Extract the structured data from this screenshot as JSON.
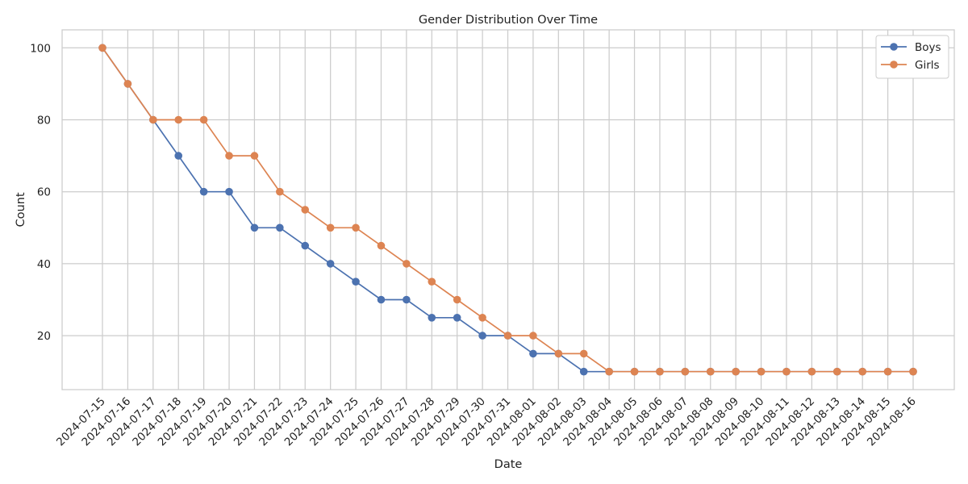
{
  "chart_data": {
    "type": "line",
    "title": "Gender Distribution Over Time",
    "xlabel": "Date",
    "ylabel": "Count",
    "x": [
      "2024-07-15",
      "2024-07-16",
      "2024-07-17",
      "2024-07-18",
      "2024-07-19",
      "2024-07-20",
      "2024-07-21",
      "2024-07-22",
      "2024-07-23",
      "2024-07-24",
      "2024-07-25",
      "2024-07-26",
      "2024-07-27",
      "2024-07-28",
      "2024-07-29",
      "2024-07-30",
      "2024-07-31",
      "2024-08-01",
      "2024-08-02",
      "2024-08-03",
      "2024-08-04",
      "2024-08-05",
      "2024-08-06",
      "2024-08-07",
      "2024-08-08",
      "2024-08-09",
      "2024-08-10",
      "2024-08-11",
      "2024-08-12",
      "2024-08-13",
      "2024-08-14",
      "2024-08-15",
      "2024-08-16"
    ],
    "yticks": [
      20,
      40,
      60,
      80,
      100
    ],
    "ylim": [
      5,
      105
    ],
    "grid": true,
    "legend_position": "top-right",
    "series": [
      {
        "name": "Boys",
        "color": "#4c72b0",
        "values": [
          100,
          90,
          80,
          70,
          60,
          60,
          50,
          50,
          45,
          40,
          35,
          30,
          30,
          25,
          25,
          20,
          20,
          15,
          15,
          10,
          10,
          10,
          10,
          10,
          10,
          10,
          10,
          10,
          10,
          10,
          10,
          10,
          10
        ]
      },
      {
        "name": "Girls",
        "color": "#dd8452",
        "values": [
          100,
          90,
          80,
          80,
          80,
          70,
          70,
          60,
          55,
          50,
          50,
          45,
          40,
          35,
          30,
          25,
          20,
          20,
          15,
          15,
          10,
          10,
          10,
          10,
          10,
          10,
          10,
          10,
          10,
          10,
          10,
          10,
          10
        ]
      }
    ]
  }
}
